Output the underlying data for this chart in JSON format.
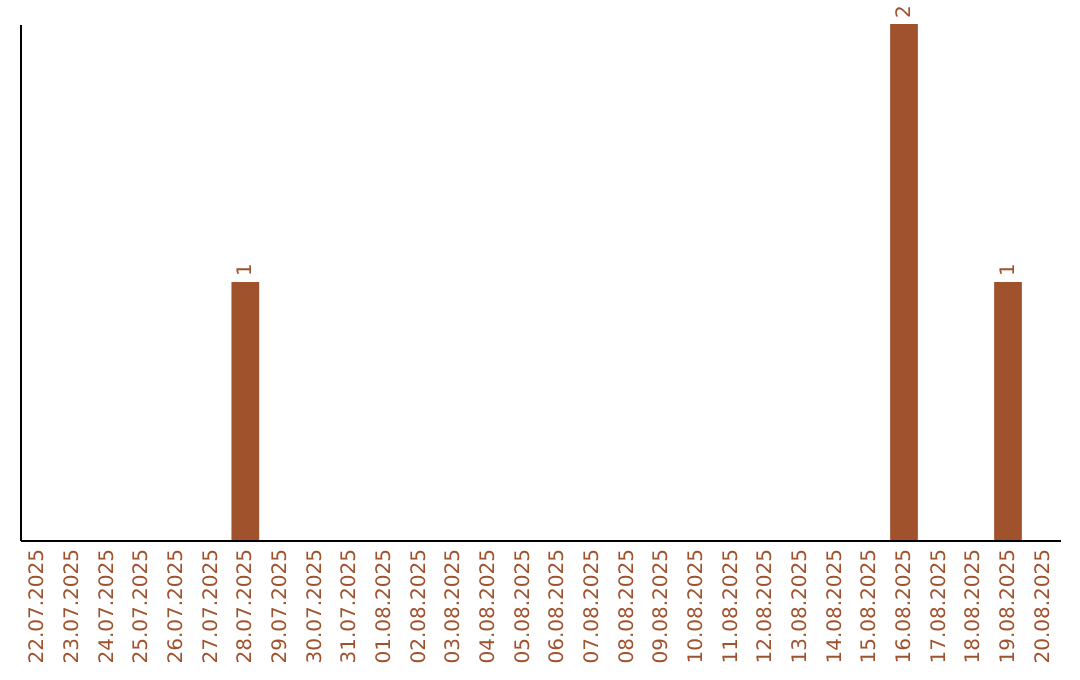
{
  "chart_data": {
    "type": "bar",
    "categories": [
      "22.07.2025",
      "23.07.2025",
      "24.07.2025",
      "25.07.2025",
      "26.07.2025",
      "27.07.2025",
      "28.07.2025",
      "29.07.2025",
      "30.07.2025",
      "31.07.2025",
      "01.08.2025",
      "02.08.2025",
      "03.08.2025",
      "04.08.2025",
      "05.08.2025",
      "06.08.2025",
      "07.08.2025",
      "08.08.2025",
      "09.08.2025",
      "10.08.2025",
      "11.08.2025",
      "12.08.2025",
      "13.08.2025",
      "14.08.2025",
      "15.08.2025",
      "16.08.2025",
      "17.08.2025",
      "18.08.2025",
      "19.08.2025",
      "20.08.2025"
    ],
    "values": [
      0,
      0,
      0,
      0,
      0,
      0,
      1,
      0,
      0,
      0,
      0,
      0,
      0,
      0,
      0,
      0,
      0,
      0,
      0,
      0,
      0,
      0,
      0,
      0,
      0,
      2,
      0,
      0,
      1,
      0
    ],
    "value_labels": [
      null,
      null,
      null,
      null,
      null,
      null,
      "1",
      null,
      null,
      null,
      null,
      null,
      null,
      null,
      null,
      null,
      null,
      null,
      null,
      null,
      null,
      null,
      null,
      null,
      null,
      "2",
      null,
      null,
      "1",
      null
    ],
    "color": "#a0522d",
    "grid": false
  }
}
